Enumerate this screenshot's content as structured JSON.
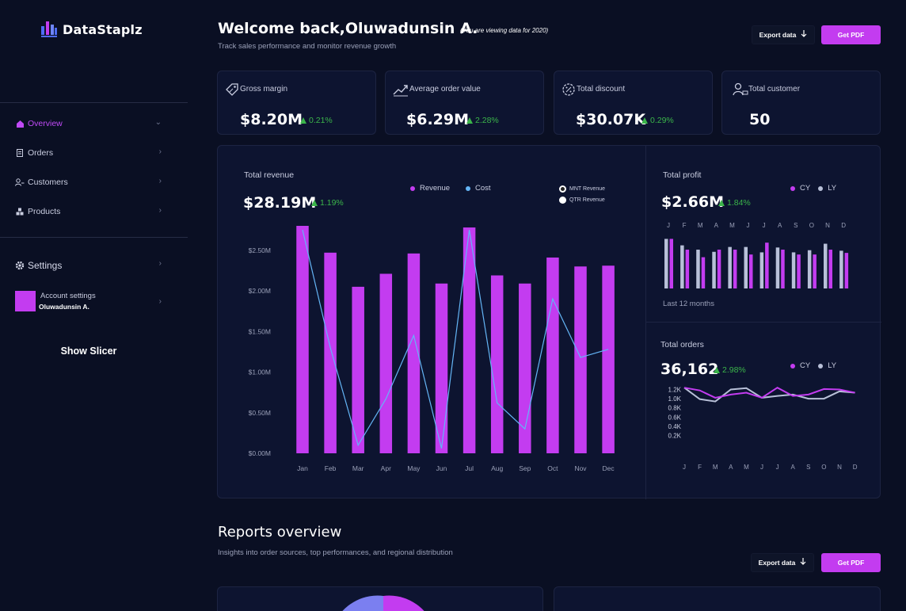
{
  "app": {
    "title": "DataStaplz"
  },
  "sidebar": {
    "items": [
      {
        "label": "Overview",
        "icon": "home-icon"
      },
      {
        "label": "Orders",
        "icon": "orders-icon"
      },
      {
        "label": "Customers",
        "icon": "customers-icon"
      },
      {
        "label": "Products",
        "icon": "products-icon"
      }
    ],
    "settings_label": "Settings",
    "account_label": "Account settings",
    "account_name": "Oluwadunsin A.",
    "slicer_label": "Show Slicer"
  },
  "header": {
    "welcome": "Welcome back,Oluwadunsin A.",
    "viewing_note": "(You are viewing data for 2020)",
    "subtitle": "Track sales performance and monitor revenue growth",
    "export_label": "Export data",
    "pdf_label": "Get PDF"
  },
  "kpis": [
    {
      "title": "Gross margin",
      "value": "$8.20M",
      "delta": "0.21%",
      "icon": "tag-icon"
    },
    {
      "title": "Average order value",
      "value": "$6.29M",
      "delta": "2.28%",
      "icon": "trend-up-icon"
    },
    {
      "title": "Total discount",
      "value": "$30.07K",
      "delta": "0.29%",
      "icon": "discount-icon"
    },
    {
      "title": "Total customer",
      "value": "50",
      "delta": "",
      "icon": "user-icon"
    }
  ],
  "revenue": {
    "title": "Total revenue",
    "value": "$28.19M",
    "delta": "1.19%",
    "legend": [
      "Revenue",
      "Cost"
    ],
    "toggle": [
      "MNT Revenue",
      "QTR Revenue"
    ]
  },
  "profit": {
    "title": "Total profit",
    "value": "$2.66M",
    "delta": "1.84%",
    "legend": [
      "CY",
      "LY"
    ],
    "footer": "Last 12 months"
  },
  "orders": {
    "title": "Total orders",
    "value": "36,162",
    "delta": "2.98%",
    "legend": [
      "CY",
      "LY"
    ]
  },
  "reports": {
    "title": "Reports overview",
    "subtitle": "Insights into order sources, top performances, and regional distribution",
    "export_label": "Export data",
    "pdf_label": "Get PDF"
  },
  "colors": {
    "accent": "#c33cf0",
    "cost_line": "#64b5f6",
    "positive": "#3bb54a",
    "ly": "#b8c0d8"
  },
  "chart_data": [
    {
      "type": "bar",
      "title": "Total revenue",
      "categories": [
        "Jan",
        "Feb",
        "Mar",
        "Apr",
        "May",
        "Jun",
        "Jul",
        "Aug",
        "Sep",
        "Oct",
        "Nov",
        "Dec"
      ],
      "series": [
        {
          "name": "Revenue",
          "type": "bar",
          "values": [
            2.8,
            2.47,
            2.05,
            2.21,
            2.46,
            2.09,
            2.78,
            2.19,
            2.09,
            2.41,
            2.3,
            2.31
          ]
        },
        {
          "name": "Cost",
          "type": "line",
          "values": [
            2.75,
            1.3,
            0.1,
            0.67,
            1.45,
            0.06,
            2.75,
            0.62,
            0.3,
            1.9,
            1.18,
            1.28
          ]
        }
      ],
      "yticks": [
        "$0.00M",
        "$0.50M",
        "$1.00M",
        "$1.50M",
        "$2.00M",
        "$2.50M"
      ],
      "ylim": [
        0,
        2.8
      ]
    },
    {
      "type": "bar",
      "title": "Total profit",
      "categories": [
        "J",
        "F",
        "M",
        "A",
        "M",
        "J",
        "J",
        "A",
        "S",
        "O",
        "N",
        "D"
      ],
      "series": [
        {
          "name": "CY",
          "values": [
            0.92,
            0.72,
            0.58,
            0.72,
            0.72,
            0.63,
            0.85,
            0.72,
            0.63,
            0.63,
            0.72,
            0.66
          ]
        },
        {
          "name": "LY",
          "values": [
            0.92,
            0.8,
            0.72,
            0.68,
            0.77,
            0.77,
            0.67,
            0.76,
            0.67,
            0.71,
            0.83,
            0.7
          ]
        }
      ]
    },
    {
      "type": "line",
      "title": "Total orders",
      "categories": [
        "J",
        "F",
        "M",
        "A",
        "M",
        "J",
        "J",
        "A",
        "S",
        "O",
        "N",
        "D"
      ],
      "yticks": [
        "0.2K",
        "0.4K",
        "0.6K",
        "0.8K",
        "1.0K",
        "1.2K"
      ],
      "ylim": [
        0,
        1.25
      ],
      "series": [
        {
          "name": "CY",
          "values": [
            1.24,
            1.18,
            1.02,
            1.09,
            1.13,
            1.02,
            1.24,
            1.06,
            1.09,
            1.21,
            1.2,
            1.13
          ]
        },
        {
          "name": "LY",
          "values": [
            1.24,
            0.99,
            0.94,
            1.2,
            1.23,
            1.02,
            1.06,
            1.09,
            1.0,
            1.0,
            1.16,
            1.13
          ]
        }
      ]
    }
  ]
}
